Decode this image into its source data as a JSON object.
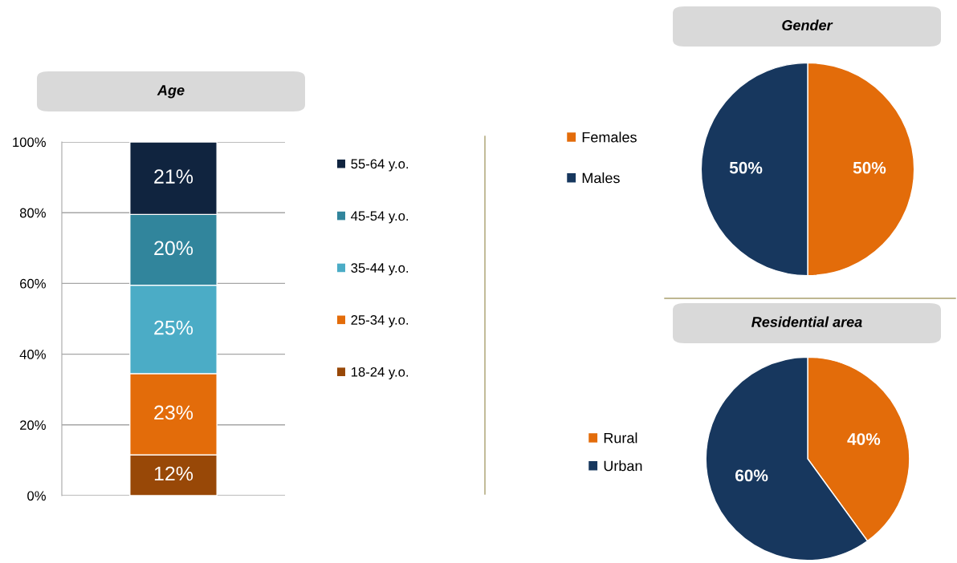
{
  "chart_data": [
    {
      "type": "bar",
      "title": "Age",
      "stacked": true,
      "categories": [
        null
      ],
      "grid": "y",
      "legend": "right",
      "ylim": [
        0,
        100
      ],
      "yticks": [
        {
          "value": 0,
          "label": "0%"
        },
        {
          "value": 20,
          "label": "20%"
        },
        {
          "value": 40,
          "label": "40%"
        },
        {
          "value": 60,
          "label": "60%"
        },
        {
          "value": 80,
          "label": "80%"
        },
        {
          "value": 100,
          "label": "100%"
        }
      ],
      "series": [
        {
          "name": "18-24 y.o.",
          "color": "#984807",
          "values": [
            11.5
          ],
          "value_labels": [
            "12%"
          ]
        },
        {
          "name": "25-34 y.o.",
          "color": "#e36c0a",
          "values": [
            23
          ],
          "value_labels": [
            "23%"
          ]
        },
        {
          "name": "35-44 y.o.",
          "color": "#4bacc6",
          "values": [
            25
          ],
          "value_labels": [
            "25%"
          ]
        },
        {
          "name": "45-54 y.o.",
          "color": "#31859c",
          "values": [
            20
          ],
          "value_labels": [
            "20%"
          ]
        },
        {
          "name": "55-64 y.o.",
          "color": "#10243f",
          "values": [
            20.5
          ],
          "value_labels": [
            "21%"
          ]
        }
      ]
    },
    {
      "type": "pie",
      "title": "Gender",
      "categories": [
        "Females",
        "Males"
      ],
      "values": [
        50,
        50
      ],
      "colors": [
        "#e36c0a",
        "#17375e"
      ],
      "value_labels": [
        "50%",
        "50%"
      ],
      "legend": "left"
    },
    {
      "type": "pie",
      "title": "Residential area",
      "categories": [
        "Rural",
        "Urban"
      ],
      "values": [
        40,
        60
      ],
      "colors": [
        "#e36c0a",
        "#17375e"
      ],
      "value_labels": [
        "40%",
        "60%"
      ],
      "legend": "left"
    }
  ]
}
